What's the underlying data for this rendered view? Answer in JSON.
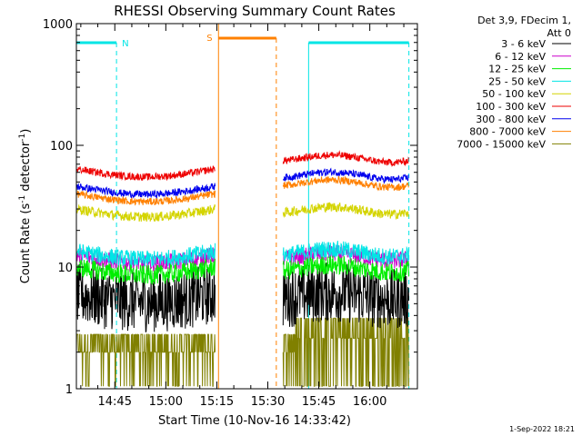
{
  "chart_data": {
    "type": "line",
    "title": "RHESSI Observing Summary Count Rates",
    "xlabel": "Start Time (10-Nov-16 14:33:42)",
    "ylabel_main": "Count Rate (s",
    "ylabel_sup1": "-1",
    "ylabel_mid": " detector",
    "ylabel_sup2": "-1",
    "ylabel_end": ")",
    "yscale": "log",
    "ylim": [
      1,
      1000
    ],
    "xlim_minutes_after_1430": [
      3.7,
      104
    ],
    "yticks": [
      {
        "value": 1,
        "label": "1"
      },
      {
        "value": 10,
        "label": "10"
      },
      {
        "value": 100,
        "label": "100"
      },
      {
        "value": 1000,
        "label": "1000"
      }
    ],
    "xticks": [
      {
        "minute": 15,
        "label": "14:45"
      },
      {
        "minute": 30,
        "label": "15:00"
      },
      {
        "minute": 45,
        "label": "15:15"
      },
      {
        "minute": 60,
        "label": "15:30"
      },
      {
        "minute": 75,
        "label": "15:45"
      },
      {
        "minute": 90,
        "label": "16:00"
      }
    ],
    "data_gap_minutes": [
      45,
      64.5
    ],
    "legend_header": [
      "Det 3,9, FDecim 1,",
      "Att 0"
    ],
    "series": [
      {
        "name": "3 - 6 keV",
        "color": "#000000",
        "level_before": 6.0,
        "level_after": 6.0,
        "noise": 0.25
      },
      {
        "name": "6 - 12 keV",
        "color": "#cc00cc",
        "level_before": 12.5,
        "level_after": 12.5,
        "noise": 0.07
      },
      {
        "name": "12 - 25 keV",
        "color": "#00ee00",
        "level_before": 10.0,
        "level_after": 10.0,
        "noise": 0.08
      },
      {
        "name": "25 - 50 keV",
        "color": "#00e5e5",
        "level_before": 13.5,
        "level_after": 13.5,
        "noise": 0.07
      },
      {
        "name": "50 - 100 keV",
        "color": "#d4d400",
        "level_before": 30,
        "level_after": 30,
        "noise": 0.04
      },
      {
        "name": "100 - 300 keV",
        "color": "#ee0000",
        "level_before": 64,
        "level_after": 80,
        "noise": 0.03
      },
      {
        "name": "300 - 800 keV",
        "color": "#0000ee",
        "level_before": 46,
        "level_after": 58,
        "noise": 0.03
      },
      {
        "name": "800 - 7000 keV",
        "color": "#ff8000",
        "level_before": 40,
        "level_after": 50,
        "noise": 0.03
      },
      {
        "name": "7000 - 15000 keV",
        "color": "#808000",
        "level_before": 2.4,
        "level_after": 2.6,
        "noise": 0.35
      }
    ],
    "annotations": [
      {
        "label": "N",
        "color": "#00e5e5",
        "bar_from": 3.7,
        "bar_to": 15.5,
        "dashed_at": 15.5,
        "solid_at": 72,
        "bar2_from": 72,
        "bar2_to": 101.5,
        "dashed2_at": 101.5
      },
      {
        "label": "S",
        "color": "#ff8000",
        "solid_at": 45.5,
        "bar_from": 45.5,
        "bar_to": 62.5,
        "dashed_at": 62.5
      }
    ]
  },
  "footer_timestamp": "1-Sep-2022 18:21"
}
